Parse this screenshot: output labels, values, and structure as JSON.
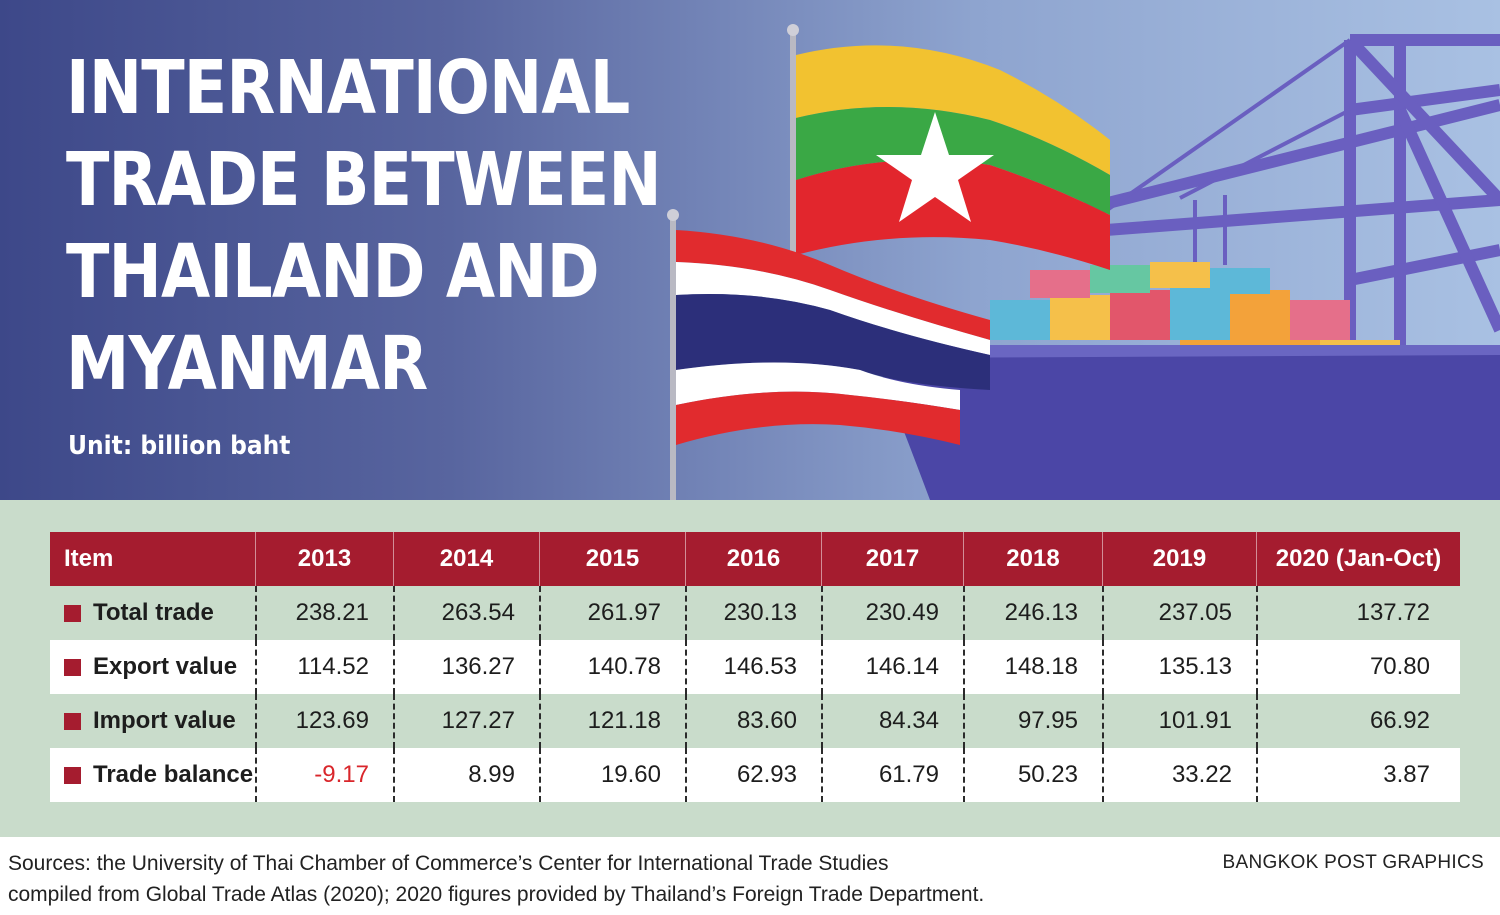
{
  "header": {
    "title_lines": [
      "INTERNATIONAL",
      "TRADE BETWEEN",
      "THAILAND AND",
      "MYANMAR"
    ],
    "unit": "Unit: billion baht"
  },
  "colors": {
    "accent_red": "#a51c2f",
    "negative_red": "#d9262b",
    "table_bg": "#c9dccb",
    "banner_dark": "#3d4889"
  },
  "chart_data": {
    "type": "table",
    "columns": [
      "Item",
      "2013",
      "2014",
      "2015",
      "2016",
      "2017",
      "2018",
      "2019",
      "2020 (Jan-Oct)"
    ],
    "rows": [
      {
        "label": "Total trade",
        "values": [
          "238.21",
          "263.54",
          "261.97",
          "230.13",
          "230.49",
          "246.13",
          "237.05",
          "137.72"
        ]
      },
      {
        "label": "Export value",
        "values": [
          "114.52",
          "136.27",
          "140.78",
          "146.53",
          "146.14",
          "148.18",
          "135.13",
          "70.80"
        ]
      },
      {
        "label": "Import value",
        "values": [
          "123.69",
          "127.27",
          "121.18",
          "83.60",
          "84.34",
          "97.95",
          "101.91",
          "66.92"
        ]
      },
      {
        "label": "Trade balance",
        "values": [
          "-9.17",
          "8.99",
          "19.60",
          "62.93",
          "61.79",
          "50.23",
          "33.22",
          "3.87"
        ]
      }
    ]
  },
  "footer": {
    "sources_line1": "Sources: the University of Thai Chamber of Commerce’s Center for International Trade Studies",
    "sources_line2": "compiled from Global Trade Atlas (2020); 2020 figures provided by Thailand’s Foreign Trade Department.",
    "credit": "BANGKOK POST GRAPHICS"
  }
}
